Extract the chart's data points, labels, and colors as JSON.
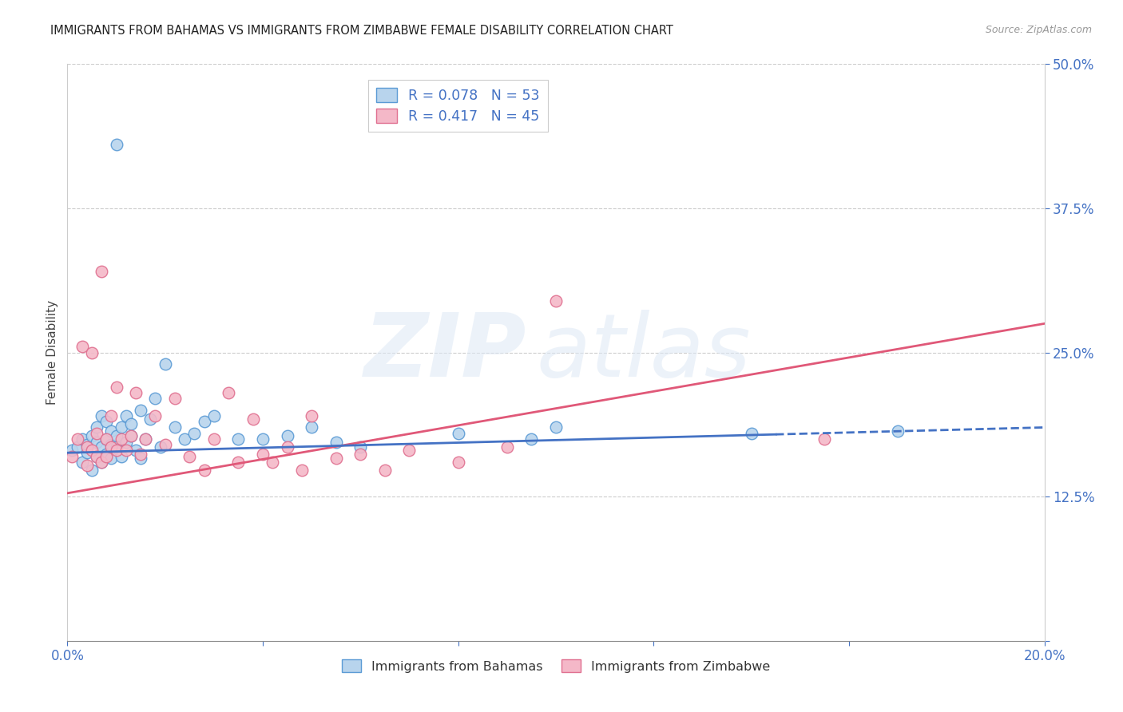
{
  "title": "IMMIGRANTS FROM BAHAMAS VS IMMIGRANTS FROM ZIMBABWE FEMALE DISABILITY CORRELATION CHART",
  "source": "Source: ZipAtlas.com",
  "ylabel": "Female Disability",
  "xlim": [
    0.0,
    0.2
  ],
  "ylim": [
    0.0,
    0.5
  ],
  "xticks": [
    0.0,
    0.04,
    0.08,
    0.12,
    0.16,
    0.2
  ],
  "xticklabels": [
    "0.0%",
    "",
    "",
    "",
    "",
    "20.0%"
  ],
  "yticks_right": [
    0.0,
    0.125,
    0.25,
    0.375,
    0.5
  ],
  "yticklabels_right": [
    "",
    "12.5%",
    "25.0%",
    "37.5%",
    "50.0%"
  ],
  "color_bah_face": "#b8d4ed",
  "color_bah_edge": "#5b9bd5",
  "color_zim_face": "#f4b8c8",
  "color_zim_edge": "#e07090",
  "color_line_bah": "#4472c4",
  "color_line_zim": "#e05878",
  "color_tick_label": "#4472c4",
  "color_grid": "#cccccc",
  "color_title": "#222222",
  "color_source": "#999999",
  "legend1_label": "R = 0.078   N = 53",
  "legend2_label": "R = 0.417   N = 45",
  "bottom_legend1": "Immigrants from Bahamas",
  "bottom_legend2": "Immigrants from Zimbabwe",
  "bah_line_solid_end": 0.145,
  "zim_line_end": 0.2,
  "bah_line_y0": 0.163,
  "bah_line_y1": 0.185,
  "zim_line_y0": 0.128,
  "zim_line_y1": 0.275,
  "bahamas_x": [
    0.001,
    0.002,
    0.003,
    0.003,
    0.004,
    0.004,
    0.005,
    0.005,
    0.006,
    0.006,
    0.006,
    0.007,
    0.007,
    0.007,
    0.008,
    0.008,
    0.008,
    0.009,
    0.009,
    0.009,
    0.01,
    0.01,
    0.01,
    0.011,
    0.011,
    0.012,
    0.012,
    0.013,
    0.013,
    0.014,
    0.015,
    0.015,
    0.016,
    0.017,
    0.018,
    0.019,
    0.02,
    0.022,
    0.024,
    0.026,
    0.028,
    0.03,
    0.035,
    0.04,
    0.045,
    0.05,
    0.055,
    0.06,
    0.08,
    0.095,
    0.1,
    0.14,
    0.17
  ],
  "bahamas_y": [
    0.165,
    0.168,
    0.155,
    0.175,
    0.163,
    0.17,
    0.148,
    0.178,
    0.172,
    0.16,
    0.185,
    0.168,
    0.195,
    0.155,
    0.175,
    0.162,
    0.19,
    0.158,
    0.17,
    0.182,
    0.178,
    0.168,
    0.43,
    0.185,
    0.16,
    0.195,
    0.172,
    0.178,
    0.188,
    0.165,
    0.2,
    0.158,
    0.175,
    0.192,
    0.21,
    0.168,
    0.24,
    0.185,
    0.175,
    0.18,
    0.19,
    0.195,
    0.175,
    0.175,
    0.178,
    0.185,
    0.172,
    0.168,
    0.18,
    0.175,
    0.185,
    0.18,
    0.182
  ],
  "zimbabwe_x": [
    0.001,
    0.002,
    0.003,
    0.004,
    0.004,
    0.005,
    0.005,
    0.006,
    0.006,
    0.007,
    0.007,
    0.008,
    0.008,
    0.009,
    0.009,
    0.01,
    0.01,
    0.011,
    0.012,
    0.013,
    0.014,
    0.015,
    0.016,
    0.018,
    0.02,
    0.022,
    0.025,
    0.028,
    0.03,
    0.033,
    0.035,
    0.038,
    0.04,
    0.042,
    0.045,
    0.048,
    0.05,
    0.055,
    0.06,
    0.065,
    0.07,
    0.08,
    0.09,
    0.1,
    0.155
  ],
  "zimbabwe_y": [
    0.16,
    0.175,
    0.255,
    0.152,
    0.168,
    0.165,
    0.25,
    0.16,
    0.18,
    0.32,
    0.155,
    0.175,
    0.16,
    0.168,
    0.195,
    0.165,
    0.22,
    0.175,
    0.165,
    0.178,
    0.215,
    0.162,
    0.175,
    0.195,
    0.17,
    0.21,
    0.16,
    0.148,
    0.175,
    0.215,
    0.155,
    0.192,
    0.162,
    0.155,
    0.168,
    0.148,
    0.195,
    0.158,
    0.162,
    0.148,
    0.165,
    0.155,
    0.168,
    0.295,
    0.175
  ]
}
